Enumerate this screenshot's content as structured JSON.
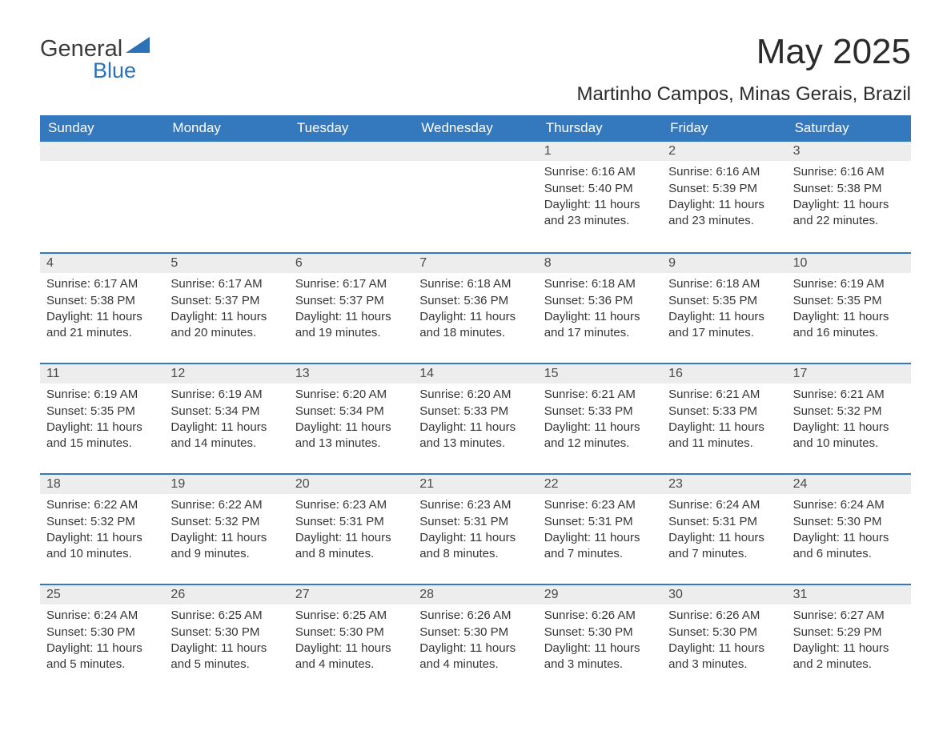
{
  "logo": {
    "text_top": "General",
    "text_bottom": "Blue",
    "icon_color": "#2d72b7"
  },
  "title": "May 2025",
  "subtitle": "Martinho Campos, Minas Gerais, Brazil",
  "colors": {
    "header_bg": "#3478bd",
    "header_text": "#ffffff",
    "daynum_bg": "#ededed",
    "body_text": "#363636",
    "week_divider": "#3478bd",
    "page_bg": "#ffffff"
  },
  "typography": {
    "title_fontsize": 44,
    "subtitle_fontsize": 24,
    "dayname_fontsize": 17,
    "daynum_fontsize": 16,
    "body_fontsize": 15,
    "font_family": "Arial"
  },
  "daynames": [
    "Sunday",
    "Monday",
    "Tuesday",
    "Wednesday",
    "Thursday",
    "Friday",
    "Saturday"
  ],
  "weeks": [
    [
      null,
      null,
      null,
      null,
      {
        "n": "1",
        "sunrise": "Sunrise: 6:16 AM",
        "sunset": "Sunset: 5:40 PM",
        "daylight": "Daylight: 11 hours and 23 minutes."
      },
      {
        "n": "2",
        "sunrise": "Sunrise: 6:16 AM",
        "sunset": "Sunset: 5:39 PM",
        "daylight": "Daylight: 11 hours and 23 minutes."
      },
      {
        "n": "3",
        "sunrise": "Sunrise: 6:16 AM",
        "sunset": "Sunset: 5:38 PM",
        "daylight": "Daylight: 11 hours and 22 minutes."
      }
    ],
    [
      {
        "n": "4",
        "sunrise": "Sunrise: 6:17 AM",
        "sunset": "Sunset: 5:38 PM",
        "daylight": "Daylight: 11 hours and 21 minutes."
      },
      {
        "n": "5",
        "sunrise": "Sunrise: 6:17 AM",
        "sunset": "Sunset: 5:37 PM",
        "daylight": "Daylight: 11 hours and 20 minutes."
      },
      {
        "n": "6",
        "sunrise": "Sunrise: 6:17 AM",
        "sunset": "Sunset: 5:37 PM",
        "daylight": "Daylight: 11 hours and 19 minutes."
      },
      {
        "n": "7",
        "sunrise": "Sunrise: 6:18 AM",
        "sunset": "Sunset: 5:36 PM",
        "daylight": "Daylight: 11 hours and 18 minutes."
      },
      {
        "n": "8",
        "sunrise": "Sunrise: 6:18 AM",
        "sunset": "Sunset: 5:36 PM",
        "daylight": "Daylight: 11 hours and 17 minutes."
      },
      {
        "n": "9",
        "sunrise": "Sunrise: 6:18 AM",
        "sunset": "Sunset: 5:35 PM",
        "daylight": "Daylight: 11 hours and 17 minutes."
      },
      {
        "n": "10",
        "sunrise": "Sunrise: 6:19 AM",
        "sunset": "Sunset: 5:35 PM",
        "daylight": "Daylight: 11 hours and 16 minutes."
      }
    ],
    [
      {
        "n": "11",
        "sunrise": "Sunrise: 6:19 AM",
        "sunset": "Sunset: 5:35 PM",
        "daylight": "Daylight: 11 hours and 15 minutes."
      },
      {
        "n": "12",
        "sunrise": "Sunrise: 6:19 AM",
        "sunset": "Sunset: 5:34 PM",
        "daylight": "Daylight: 11 hours and 14 minutes."
      },
      {
        "n": "13",
        "sunrise": "Sunrise: 6:20 AM",
        "sunset": "Sunset: 5:34 PM",
        "daylight": "Daylight: 11 hours and 13 minutes."
      },
      {
        "n": "14",
        "sunrise": "Sunrise: 6:20 AM",
        "sunset": "Sunset: 5:33 PM",
        "daylight": "Daylight: 11 hours and 13 minutes."
      },
      {
        "n": "15",
        "sunrise": "Sunrise: 6:21 AM",
        "sunset": "Sunset: 5:33 PM",
        "daylight": "Daylight: 11 hours and 12 minutes."
      },
      {
        "n": "16",
        "sunrise": "Sunrise: 6:21 AM",
        "sunset": "Sunset: 5:33 PM",
        "daylight": "Daylight: 11 hours and 11 minutes."
      },
      {
        "n": "17",
        "sunrise": "Sunrise: 6:21 AM",
        "sunset": "Sunset: 5:32 PM",
        "daylight": "Daylight: 11 hours and 10 minutes."
      }
    ],
    [
      {
        "n": "18",
        "sunrise": "Sunrise: 6:22 AM",
        "sunset": "Sunset: 5:32 PM",
        "daylight": "Daylight: 11 hours and 10 minutes."
      },
      {
        "n": "19",
        "sunrise": "Sunrise: 6:22 AM",
        "sunset": "Sunset: 5:32 PM",
        "daylight": "Daylight: 11 hours and 9 minutes."
      },
      {
        "n": "20",
        "sunrise": "Sunrise: 6:23 AM",
        "sunset": "Sunset: 5:31 PM",
        "daylight": "Daylight: 11 hours and 8 minutes."
      },
      {
        "n": "21",
        "sunrise": "Sunrise: 6:23 AM",
        "sunset": "Sunset: 5:31 PM",
        "daylight": "Daylight: 11 hours and 8 minutes."
      },
      {
        "n": "22",
        "sunrise": "Sunrise: 6:23 AM",
        "sunset": "Sunset: 5:31 PM",
        "daylight": "Daylight: 11 hours and 7 minutes."
      },
      {
        "n": "23",
        "sunrise": "Sunrise: 6:24 AM",
        "sunset": "Sunset: 5:31 PM",
        "daylight": "Daylight: 11 hours and 7 minutes."
      },
      {
        "n": "24",
        "sunrise": "Sunrise: 6:24 AM",
        "sunset": "Sunset: 5:30 PM",
        "daylight": "Daylight: 11 hours and 6 minutes."
      }
    ],
    [
      {
        "n": "25",
        "sunrise": "Sunrise: 6:24 AM",
        "sunset": "Sunset: 5:30 PM",
        "daylight": "Daylight: 11 hours and 5 minutes."
      },
      {
        "n": "26",
        "sunrise": "Sunrise: 6:25 AM",
        "sunset": "Sunset: 5:30 PM",
        "daylight": "Daylight: 11 hours and 5 minutes."
      },
      {
        "n": "27",
        "sunrise": "Sunrise: 6:25 AM",
        "sunset": "Sunset: 5:30 PM",
        "daylight": "Daylight: 11 hours and 4 minutes."
      },
      {
        "n": "28",
        "sunrise": "Sunrise: 6:26 AM",
        "sunset": "Sunset: 5:30 PM",
        "daylight": "Daylight: 11 hours and 4 minutes."
      },
      {
        "n": "29",
        "sunrise": "Sunrise: 6:26 AM",
        "sunset": "Sunset: 5:30 PM",
        "daylight": "Daylight: 11 hours and 3 minutes."
      },
      {
        "n": "30",
        "sunrise": "Sunrise: 6:26 AM",
        "sunset": "Sunset: 5:30 PM",
        "daylight": "Daylight: 11 hours and 3 minutes."
      },
      {
        "n": "31",
        "sunrise": "Sunrise: 6:27 AM",
        "sunset": "Sunset: 5:29 PM",
        "daylight": "Daylight: 11 hours and 2 minutes."
      }
    ]
  ]
}
